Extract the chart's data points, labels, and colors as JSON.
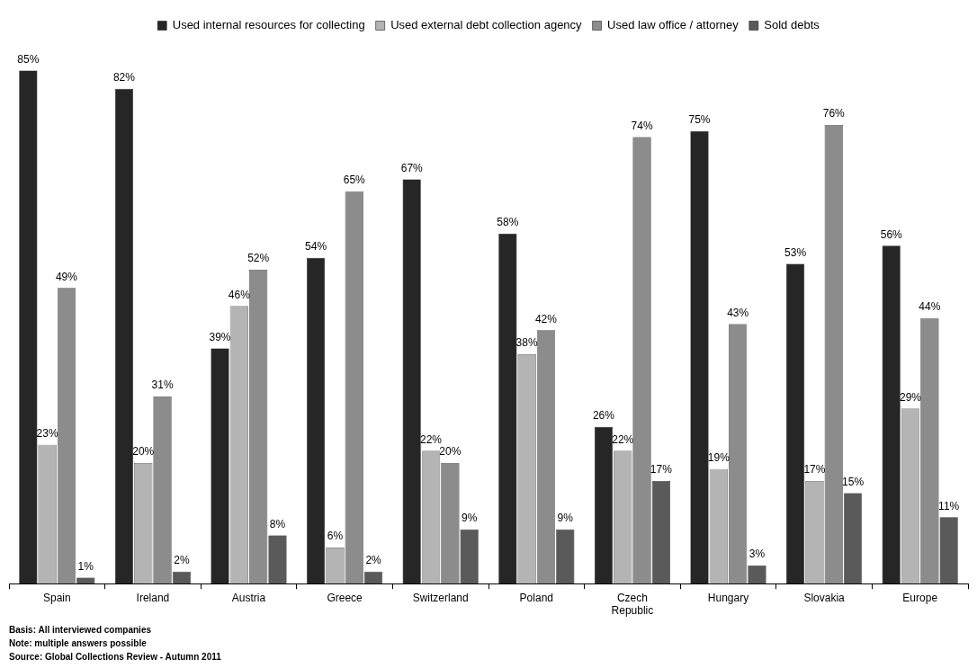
{
  "chart_data": {
    "type": "bar",
    "categories": [
      "Spain",
      "Ireland",
      "Austria",
      "Greece",
      "Switzerland",
      "Poland",
      "Czech Republic",
      "Hungary",
      "Slovakia",
      "Europe"
    ],
    "series": [
      {
        "name": "Used internal resources for collecting",
        "color": "#262626",
        "values": [
          85,
          82,
          39,
          54,
          67,
          58,
          26,
          75,
          53,
          56
        ],
        "value_labels": [
          "85%",
          "82%",
          "39%",
          "54%",
          "67%",
          "58%",
          "26%",
          "75%",
          "53%",
          "56%"
        ]
      },
      {
        "name": "Used external debt collection agency",
        "color": "#b4b4b4",
        "values": [
          23,
          20,
          46,
          6,
          22,
          38,
          22,
          19,
          17,
          29
        ],
        "value_labels": [
          "23%",
          "20%",
          "46%",
          "6%",
          "22%",
          "38%",
          "22%",
          "19%",
          "17%",
          "29%"
        ]
      },
      {
        "name": "Used law office / attorney",
        "color": "#8c8c8c",
        "values": [
          49,
          31,
          52,
          65,
          20,
          42,
          74,
          43,
          76,
          44
        ],
        "value_labels": [
          "49%",
          "31%",
          "52%",
          "65%",
          "20%",
          "42%",
          "74%",
          "43%",
          "76%",
          "44%"
        ]
      },
      {
        "name": "Sold debts",
        "color": "#5a5a5a",
        "values": [
          1,
          2,
          8,
          2,
          9,
          9,
          17,
          3,
          15,
          11
        ],
        "value_labels": [
          "1%",
          "2%",
          "8%",
          "2%",
          "9%",
          "9%",
          "17%",
          "3%",
          "15%",
          "11%"
        ]
      }
    ],
    "legend": "top",
    "grid": false,
    "tick_labels": "x",
    "annotations": [
      "Basis: All interviewed companies",
      "Note: multiple answers possible",
      "Source: Global Collections Review - Autumn 2011"
    ]
  }
}
